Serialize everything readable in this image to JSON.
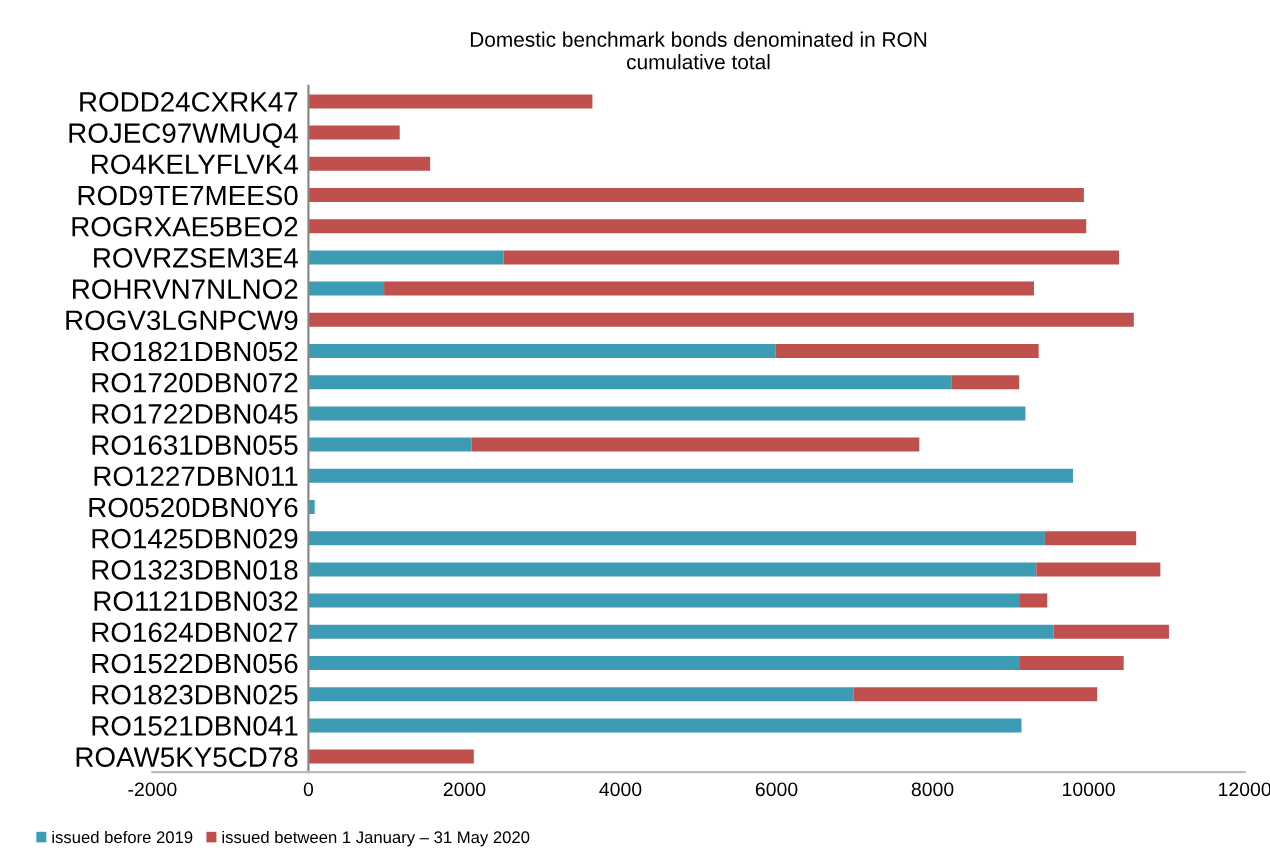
{
  "chart_data": {
    "type": "bar",
    "orientation": "horizontal",
    "stacked": true,
    "title": "Domestic benchmark bonds denominated in RON\ncumulative total",
    "categories": [
      "RODD24CXRK47",
      "ROJEC97WMUQ4",
      "RO4KELYFLVK4",
      "ROD9TE7MEES0",
      "ROGRXAE5BEO2",
      "ROVRZSEM3E4",
      "ROHRVN7NLNO2",
      "ROGV3LGNPCW9",
      "RO1821DBN052",
      "RO1720DBN072",
      "RO1722DBN045",
      "RO1631DBN055",
      "RO1227DBN011",
      "RO0520DBN0Y6",
      "RO1425DBN029",
      "RO1323DBN018",
      "RO1121DBN032",
      "RO1624DBN027",
      "RO1522DBN056",
      "RO1823DBN025",
      "RO1521DBN041",
      "ROAW5KY5CD78"
    ],
    "series": [
      {
        "name": "issued before 2019",
        "color": "#3d9bb3",
        "values": [
          0,
          0,
          0,
          0,
          0,
          2500,
          970,
          0,
          5990,
          8240,
          9190,
          2090,
          9800,
          80,
          9440,
          9330,
          9110,
          9550,
          9110,
          6990,
          9140,
          0
        ]
      },
      {
        "name": "issued between 1 January – 31 May 2020",
        "color": "#c0504d",
        "values": [
          3640,
          1170,
          1560,
          9940,
          9970,
          7890,
          8330,
          10580,
          3370,
          870,
          0,
          5740,
          0,
          0,
          1170,
          1590,
          360,
          1480,
          1340,
          3120,
          0,
          2120
        ]
      }
    ],
    "xlim": [
      -2000,
      12000
    ],
    "xticks": [
      -2000,
      0,
      2000,
      4000,
      6000,
      8000,
      10000,
      12000
    ],
    "grid": false,
    "legend": "bottom"
  }
}
